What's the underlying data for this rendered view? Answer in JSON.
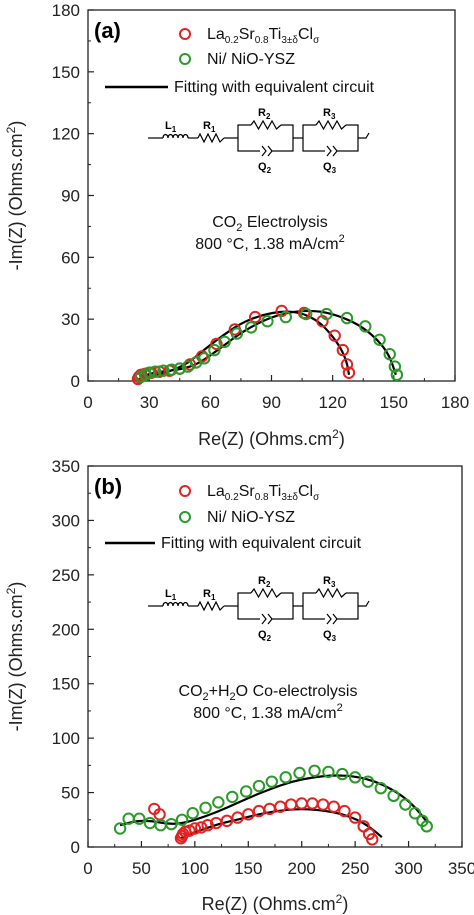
{
  "chart_data": [
    {
      "type": "scatter",
      "panel_label": "(a)",
      "xlabel": "Re(Z) (Ohms.cm",
      "ylabel": "-Im(Z) (Ohms.cm",
      "xlim": [
        0,
        180
      ],
      "ylim": [
        0,
        180
      ],
      "xticks": [
        "0",
        "30",
        "60",
        "90",
        "120",
        "150",
        "180"
      ],
      "yticks": [
        "0",
        "30",
        "60",
        "90",
        "120",
        "150",
        "180"
      ],
      "legend": {
        "series1": {
          "base": "La",
          "s1": "0.2",
          "m1": "Sr",
          "s2": "0.8",
          "m2": "Ti",
          "s3": "3±δ",
          "m3": "Cl",
          "s4": "σ"
        },
        "series2": "Ni/ NiO-YSZ",
        "fit": "Fitting with equivalent circuit"
      },
      "circuit": {
        "L": "L",
        "L_sub": "1",
        "R1": "R",
        "R1_sub": "1",
        "R2": "R",
        "R2_sub": "2",
        "Q2": "Q",
        "Q2_sub": "2",
        "R3": "R",
        "R3_sub": "3",
        "Q3": "Q",
        "Q3_sub": "3"
      },
      "annotation": {
        "line1_a": "CO",
        "line1_sub": "2",
        "line1_b": " Electrolysis",
        "line2": "800 °C, 1.38 mA/cm",
        "line2_sup": "2"
      },
      "colors": {
        "series1": "#e32222",
        "series2": "#2a9a2a",
        "fit": "#000000"
      },
      "series": [
        {
          "name": "La0.2Sr0.8Ti3±δClσ",
          "marker": "circle-open",
          "color": "#e32222",
          "x": [
            24.5,
            25,
            26,
            28,
            31,
            35,
            40,
            45,
            50,
            56,
            63,
            72,
            82,
            95,
            106,
            115,
            121,
            125,
            127,
            128
          ],
          "y": [
            1,
            2,
            3,
            3.5,
            4,
            4.5,
            5,
            6,
            8,
            12,
            18,
            25,
            31,
            34,
            33,
            29,
            22,
            15,
            8,
            4
          ]
        },
        {
          "name": "Ni/ NiO-YSZ",
          "marker": "circle-open",
          "color": "#2a9a2a",
          "x": [
            26,
            28,
            30,
            33,
            37,
            41,
            45,
            49,
            53,
            57,
            62,
            67,
            73,
            80,
            88,
            97,
            107,
            117,
            127,
            136,
            143,
            148,
            150.5,
            151.5
          ],
          "y": [
            2,
            3,
            4,
            4.5,
            5,
            5.5,
            6,
            7,
            9,
            11,
            15,
            19,
            23,
            26,
            29,
            31,
            32.5,
            32.5,
            30.5,
            26.5,
            20,
            13,
            7,
            3
          ]
        },
        {
          "name": "fit-1",
          "type": "line",
          "color": "#000000",
          "x": [
            25,
            30,
            38,
            46,
            52,
            58,
            66,
            75,
            85,
            96,
            105,
            113,
            119,
            124,
            127,
            128
          ],
          "y": [
            1,
            2,
            4,
            7,
            11,
            16,
            22,
            28,
            32,
            34,
            33,
            29,
            23,
            16,
            9,
            3
          ]
        },
        {
          "name": "fit-2",
          "type": "line",
          "color": "#000000",
          "x": [
            26,
            32,
            40,
            47,
            53,
            58,
            65,
            73,
            83,
            93,
            103,
            114,
            125,
            135,
            143,
            148,
            151
          ],
          "y": [
            2,
            4,
            5,
            6,
            8,
            11,
            16,
            22,
            28,
            32,
            34,
            34,
            31,
            26,
            19,
            12,
            3
          ]
        }
      ]
    },
    {
      "type": "scatter",
      "panel_label": "(b)",
      "xlabel": "Re(Z) (Ohms.cm",
      "ylabel": "-Im(Z) (Ohms.cm",
      "xlim": [
        0,
        350
      ],
      "ylim": [
        0,
        350
      ],
      "xticks": [
        "0",
        "50",
        "100",
        "150",
        "200",
        "250",
        "300",
        "350"
      ],
      "yticks": [
        "0",
        "50",
        "100",
        "150",
        "200",
        "250",
        "300",
        "350"
      ],
      "legend": {
        "series1": {
          "base": "La",
          "s1": "0.2",
          "m1": "Sr",
          "s2": "0.8",
          "m2": "Ti",
          "s3": "3±δ",
          "m3": "Cl",
          "s4": "σ"
        },
        "series2": "Ni/ NiO-YSZ",
        "fit": "Fitting with equivalent circuit"
      },
      "circuit": {
        "L": "L",
        "L_sub": "1",
        "R1": "R",
        "R1_sub": "1",
        "R2": "R",
        "R2_sub": "2",
        "Q2": "Q",
        "Q2_sub": "2",
        "R3": "R",
        "R3_sub": "3",
        "Q3": "Q",
        "Q3_sub": "3"
      },
      "annotation": {
        "line1_a": "CO",
        "line1_sub": "2",
        "line1_b": "+H",
        "line1_sub2": "2",
        "line1_c": "O Co-electrolysis",
        "line2": "800 °C, 1.38 mA/cm",
        "line2_sup": "2"
      },
      "colors": {
        "series1": "#e32222",
        "series2": "#2a9a2a",
        "fit": "#000000"
      },
      "series": [
        {
          "name": "La0.2Sr0.8Ti3±δClσ",
          "marker": "circle-open",
          "color": "#e32222",
          "x": [
            62,
            67,
            87,
            88,
            89,
            91,
            95,
            100,
            106,
            112,
            120,
            130,
            140,
            150,
            160,
            170,
            180,
            190,
            200,
            210,
            220,
            230,
            240,
            250,
            258,
            263,
            266
          ],
          "y": [
            35,
            30,
            8,
            10,
            12,
            14,
            15,
            17,
            18,
            20,
            22,
            24,
            27,
            30,
            33,
            35,
            37,
            39,
            40,
            40,
            39,
            37,
            33,
            27,
            19,
            12,
            7
          ]
        },
        {
          "name": "Ni/ NiO-YSZ",
          "marker": "circle-open",
          "color": "#2a9a2a",
          "x": [
            30,
            38,
            48,
            58,
            68,
            78,
            88,
            98,
            110,
            122,
            135,
            148,
            160,
            172,
            185,
            198,
            212,
            225,
            238,
            250,
            262,
            274,
            286,
            297,
            306,
            313,
            317
          ],
          "y": [
            17,
            26,
            26,
            22,
            20,
            21,
            25,
            31,
            36,
            41,
            46,
            51,
            56,
            60,
            64,
            68,
            70,
            69,
            67,
            64,
            60,
            54,
            47,
            39,
            31,
            24,
            19
          ]
        },
        {
          "name": "fit-1",
          "type": "line",
          "color": "#000000",
          "x": [
            87,
            95,
            110,
            125,
            140,
            155,
            170,
            185,
            200,
            215,
            230,
            245,
            258,
            268,
            275
          ],
          "y": [
            8,
            12,
            17,
            22,
            25,
            29,
            32,
            34,
            35,
            34,
            32,
            28,
            22,
            15,
            9
          ]
        },
        {
          "name": "fit-2",
          "type": "line",
          "color": "#000000",
          "x": [
            30,
            45,
            60,
            75,
            90,
            110,
            130,
            150,
            170,
            190,
            210,
            230,
            250,
            270,
            290,
            305,
            318
          ],
          "y": [
            20,
            24,
            24,
            21,
            22,
            28,
            36,
            45,
            53,
            60,
            64,
            66,
            65,
            60,
            50,
            38,
            22
          ]
        }
      ]
    }
  ]
}
